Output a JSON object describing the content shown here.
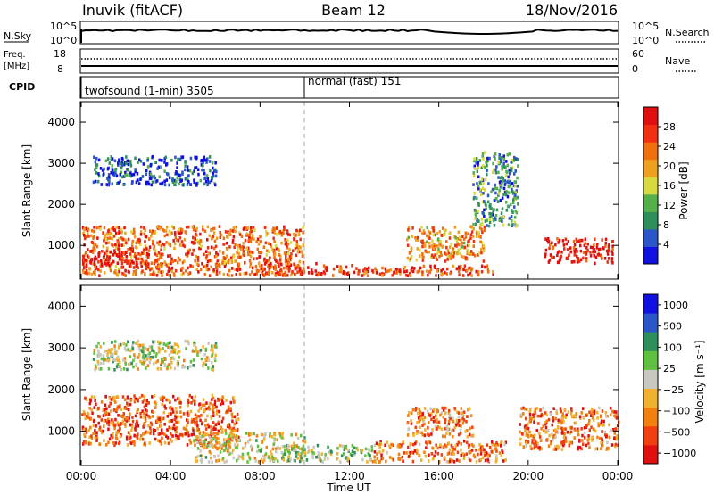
{
  "header": {
    "station": "Inuvik (fitACF)",
    "beam": "Beam 12",
    "date": "18/Nov/2016"
  },
  "colors": {
    "power_scale": [
      "#1010e0",
      "#2a56c8",
      "#2f8f5a",
      "#56b04a",
      "#d8d840",
      "#f0a020",
      "#f07010",
      "#f03010",
      "#e01010"
    ],
    "velocity_scale": [
      "#e01010",
      "#f04010",
      "#f08010",
      "#f0b030",
      "#c8c8c0",
      "#60c040",
      "#2f8f5a",
      "#2a56c8",
      "#1010e0"
    ]
  },
  "top_panels": {
    "nsky": {
      "label": "N.Sky",
      "left_ticks": [
        "10^5",
        "10^0"
      ],
      "right_ticks": [
        "10^5",
        "10^0"
      ],
      "right_label": "N.Search"
    },
    "freq": {
      "label_line1": "Freq.",
      "label_line2": "[MHz]",
      "left_ticks": [
        "18",
        "8"
      ],
      "right_ticks": [
        "60",
        "0"
      ],
      "right_label": "Nave"
    },
    "cpid": {
      "label": "CPID",
      "segments": [
        {
          "text": "twofsound (1-min) 3505"
        },
        {
          "text": "normal (fast) 151"
        }
      ]
    }
  },
  "chart_data": [
    {
      "type": "heatmap",
      "name": "power",
      "ylabel": "Slant Range [km]",
      "yticks": [
        1000,
        2000,
        3000,
        4000
      ],
      "ylim": [
        180,
        4500
      ],
      "xlim": [
        0,
        24
      ],
      "colorbar": {
        "label": "Power [dB]",
        "ticks": [
          "4",
          "8",
          "12",
          "16",
          "20",
          "24",
          "28"
        ],
        "range": [
          0,
          32
        ]
      },
      "regions": [
        {
          "t": [
            0.0,
            9.9
          ],
          "r": [
            300,
            1500
          ],
          "level": 0.75
        },
        {
          "t": [
            0.0,
            3.0
          ],
          "r": [
            500,
            900
          ],
          "level": 0.95
        },
        {
          "t": [
            8.0,
            10.5
          ],
          "r": [
            300,
            600
          ],
          "level": 0.9
        },
        {
          "t": [
            10.5,
            18.5
          ],
          "r": [
            300,
            550
          ],
          "level": 0.85
        },
        {
          "t": [
            14.5,
            18.0
          ],
          "r": [
            650,
            1500
          ],
          "level": 0.65
        },
        {
          "t": [
            20.7,
            23.8
          ],
          "r": [
            600,
            1200
          ],
          "level": 0.95
        },
        {
          "t": [
            0.5,
            6.0
          ],
          "r": [
            2500,
            3200
          ],
          "level": 0.15
        },
        {
          "t": [
            17.5,
            19.5
          ],
          "r": [
            1500,
            3300
          ],
          "level": 0.3
        }
      ]
    },
    {
      "type": "heatmap",
      "name": "velocity",
      "ylabel": "Slant Range [km]",
      "yticks": [
        1000,
        2000,
        3000,
        4000
      ],
      "ylim": [
        180,
        4500
      ],
      "xlim": [
        0,
        24
      ],
      "xticks": [
        "00:00",
        "04:00",
        "08:00",
        "12:00",
        "16:00",
        "20:00",
        "00:00"
      ],
      "xlabel": "Time UT",
      "colorbar": {
        "label": "Velocity [m s⁻¹]",
        "ticks": [
          "1000",
          "500",
          "100",
          "25",
          "−25",
          "−100",
          "−500",
          "−1000"
        ]
      },
      "regions": [
        {
          "t": [
            0.0,
            7.0
          ],
          "r": [
            700,
            1900
          ],
          "level": 0.2
        },
        {
          "t": [
            5.0,
            10.0
          ],
          "r": [
            300,
            1000
          ],
          "level": 0.45
        },
        {
          "t": [
            9.0,
            13.0
          ],
          "r": [
            300,
            700
          ],
          "level": 0.55
        },
        {
          "t": [
            13.0,
            19.0
          ],
          "r": [
            300,
            800
          ],
          "level": 0.25
        },
        {
          "t": [
            14.5,
            17.5
          ],
          "r": [
            900,
            1600
          ],
          "level": 0.3
        },
        {
          "t": [
            19.5,
            24.0
          ],
          "r": [
            600,
            1600
          ],
          "level": 0.25
        },
        {
          "t": [
            0.5,
            6.0
          ],
          "r": [
            2500,
            3200
          ],
          "level": 0.5
        }
      ]
    }
  ],
  "axes": {
    "time_ticks": [
      "00:00",
      "04:00",
      "08:00",
      "12:00",
      "16:00",
      "20:00",
      "00:00"
    ],
    "time_label": "Time UT"
  }
}
